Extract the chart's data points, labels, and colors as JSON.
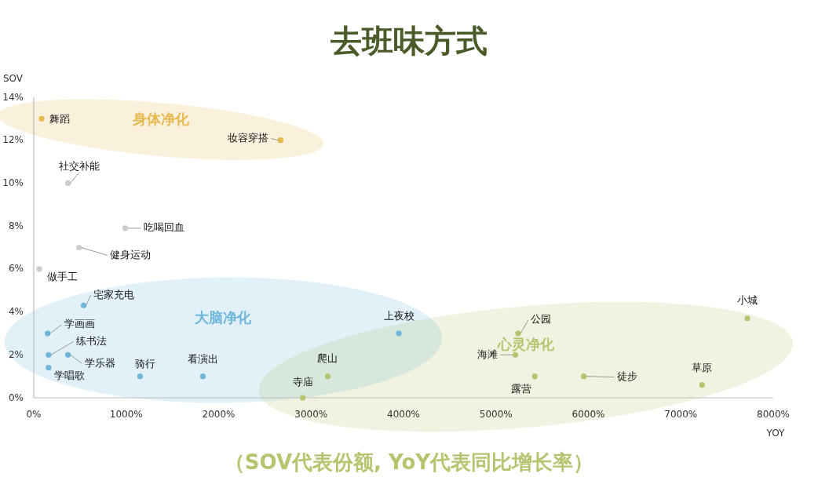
{
  "chart_data": {
    "type": "scatter",
    "title": "去班味方式",
    "xlabel": "YOY",
    "ylabel": "SOV",
    "annotations": [
      "（SOV代表份额, YoY代表同比增长率）"
    ],
    "xlim": [
      0,
      8000
    ],
    "ylim": [
      0,
      14
    ],
    "xticks": [
      {
        "value": 0,
        "label": "0%"
      },
      {
        "value": 1000,
        "label": "1000%"
      },
      {
        "value": 2000,
        "label": "2000%"
      },
      {
        "value": 3000,
        "label": "3000%"
      },
      {
        "value": 4000,
        "label": "4000%"
      },
      {
        "value": 5000,
        "label": "5000%"
      },
      {
        "value": 6000,
        "label": "6000%"
      },
      {
        "value": 7000,
        "label": "7000%"
      },
      {
        "value": 8000,
        "label": "8000%"
      }
    ],
    "yticks": [
      {
        "value": 0,
        "label": "0%"
      },
      {
        "value": 2,
        "label": "2%"
      },
      {
        "value": 4,
        "label": "4%"
      },
      {
        "value": 6,
        "label": "6%"
      },
      {
        "value": 8,
        "label": "8%"
      },
      {
        "value": 10,
        "label": "10%"
      },
      {
        "value": 12,
        "label": "12%"
      },
      {
        "value": 14,
        "label": "14%"
      }
    ],
    "grid": false,
    "marker": "circle",
    "series": [
      {
        "name": "身体净化",
        "color": "#e6b94f",
        "x": [
          85,
          2670
        ],
        "values": [
          13.0,
          12.0
        ],
        "value_labels": [
          "舞蹈",
          "妆容穿搭"
        ]
      },
      {
        "color": "#cccccc",
        "x": [
          370,
          990,
          490,
          60
        ],
        "values": [
          10.0,
          7.9,
          7.0,
          6.0
        ],
        "value_labels": [
          "社交补能",
          "吃喝回血",
          "健身运动",
          "做手工"
        ]
      },
      {
        "name": "大脑净化",
        "color": "#6fb6da",
        "x": [
          540,
          150,
          160,
          370,
          160,
          1150,
          1830,
          3950
        ],
        "values": [
          4.3,
          3.0,
          2.0,
          2.0,
          1.4,
          1.0,
          1.0,
          3.0
        ],
        "value_labels": [
          "宅家充电",
          "学画画",
          "练书法",
          "学乐器",
          "学唱歌",
          "骑行",
          "看演出",
          "上夜校"
        ]
      },
      {
        "name": "心灵净化",
        "color": "#b5c46f",
        "x": [
          2910,
          3180,
          5210,
          5240,
          5420,
          5950,
          7230,
          7720
        ],
        "values": [
          0,
          1.0,
          2.0,
          3.0,
          1.0,
          1.0,
          0.6,
          3.7
        ],
        "value_labels": [
          "寺庙",
          "爬山",
          "海滩",
          "公园",
          "露营",
          "徒步",
          "草原",
          "小城"
        ]
      }
    ]
  }
}
